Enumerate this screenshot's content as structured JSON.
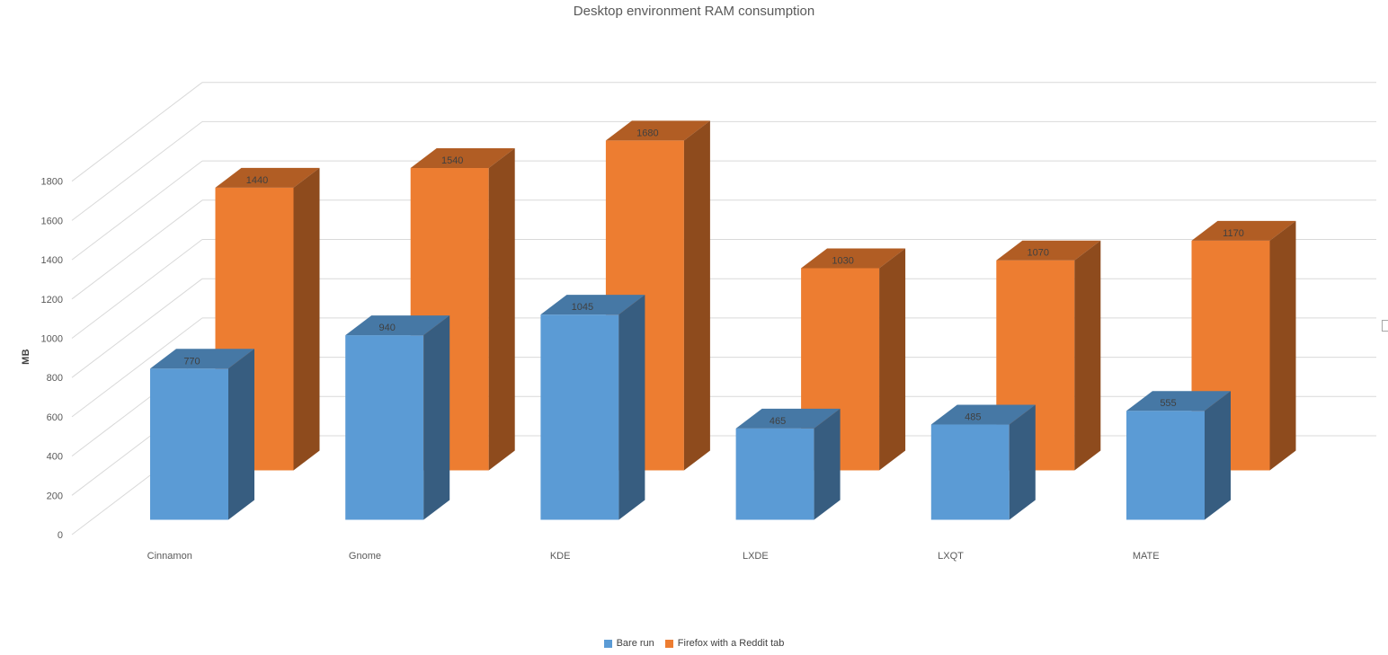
{
  "chart_data": {
    "type": "bar",
    "style": "3d-column",
    "title": "Desktop environment RAM consumption",
    "xlabel": "",
    "ylabel": "MB",
    "ylim": [
      0,
      1800
    ],
    "ytick_step": 200,
    "grid": true,
    "legend_position": "bottom",
    "categories": [
      "Cinnamon",
      "Gnome",
      "KDE",
      "LXDE",
      "LXQT",
      "MATE"
    ],
    "series": [
      {
        "name": "Bare run",
        "color": "#5B9BD5",
        "color_top": "#4678A5",
        "color_side": "#375D80",
        "values": [
          770,
          940,
          1045,
          465,
          485,
          555
        ]
      },
      {
        "name": "Firefox with a Reddit tab",
        "color": "#ED7D31",
        "color_top": "#B15D24",
        "color_side": "#8E4B1D",
        "values": [
          1440,
          1540,
          1680,
          1030,
          1070,
          1170
        ]
      }
    ],
    "data_label_color": "#404040",
    "tick_label_color": "#595959",
    "gridline_color": "#D9D9D9"
  }
}
